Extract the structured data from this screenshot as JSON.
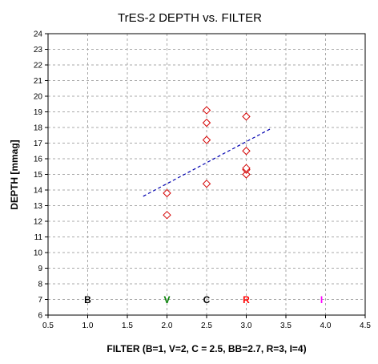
{
  "chart_data": {
    "type": "scatter",
    "title": "TrES-2 DEPTH vs. FILTER",
    "xlabel": "FILTER (B=1, V=2, C = 2.5, BB=2.7, R=3, I=4)",
    "ylabel": "DEPTH [mmag]",
    "xlim": [
      0.5,
      4.5
    ],
    "ylim": [
      6,
      24
    ],
    "x_ticks": [
      "0.5",
      "1.0",
      "1.5",
      "2.0",
      "2.5",
      "3.0",
      "3.5",
      "4.0",
      "4.5"
    ],
    "y_ticks": [
      "6",
      "7",
      "8",
      "9",
      "10",
      "11",
      "12",
      "13",
      "14",
      "15",
      "16",
      "17",
      "18",
      "19",
      "20",
      "21",
      "22",
      "23",
      "24"
    ],
    "grid": true,
    "series": [
      {
        "marker": "diamond",
        "color": "#d40000",
        "points": [
          {
            "x": 2.0,
            "y": 12.4
          },
          {
            "x": 2.0,
            "y": 13.8
          },
          {
            "x": 2.5,
            "y": 14.4
          },
          {
            "x": 2.5,
            "y": 17.2
          },
          {
            "x": 2.5,
            "y": 18.3
          },
          {
            "x": 2.5,
            "y": 19.1
          },
          {
            "x": 3.0,
            "y": 15.0
          },
          {
            "x": 3.0,
            "y": 15.3
          },
          {
            "x": 3.0,
            "y": 15.4
          },
          {
            "x": 3.0,
            "y": 16.5
          },
          {
            "x": 3.0,
            "y": 18.7
          }
        ]
      }
    ],
    "trendline": {
      "style": "dashed",
      "color": "#0000b0",
      "points": [
        {
          "x": 1.7,
          "y": 13.6
        },
        {
          "x": 3.3,
          "y": 17.9
        }
      ]
    },
    "band_labels": [
      {
        "text": "B",
        "x": 1.0,
        "y": 7,
        "color": "#000000"
      },
      {
        "text": "V",
        "x": 2.0,
        "y": 7,
        "color": "#008000"
      },
      {
        "text": "C",
        "x": 2.5,
        "y": 7,
        "color": "#000000"
      },
      {
        "text": "R",
        "x": 3.0,
        "y": 7,
        "color": "#ff0000"
      },
      {
        "text": "I",
        "x": 3.95,
        "y": 7,
        "color": "#ff00ff"
      }
    ]
  }
}
